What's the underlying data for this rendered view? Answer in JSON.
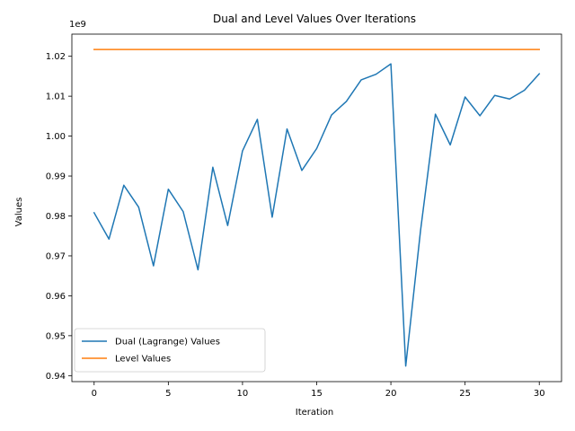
{
  "chart_data": {
    "type": "line",
    "title": "Dual and Level Values Over Iterations",
    "xlabel": "Iteration",
    "ylabel": "Values",
    "offset_text": "1e9",
    "xlim": [
      -1.5,
      31.5
    ],
    "ylim": [
      0.9385,
      1.02555
    ],
    "x_ticks": [
      0,
      5,
      10,
      15,
      20,
      25,
      30
    ],
    "x_tick_labels": [
      "0",
      "5",
      "10",
      "15",
      "20",
      "25",
      "30"
    ],
    "y_ticks": [
      0.94,
      0.95,
      0.96,
      0.97,
      0.98,
      0.99,
      1.0,
      1.01,
      1.02
    ],
    "y_tick_labels": [
      "0.94",
      "0.95",
      "0.96",
      "0.97",
      "0.98",
      "0.99",
      "1.00",
      "1.01",
      "1.02"
    ],
    "grid": false,
    "legend_position": "lower-left",
    "x": [
      0,
      1,
      2,
      3,
      4,
      5,
      6,
      7,
      8,
      9,
      10,
      11,
      12,
      13,
      14,
      15,
      16,
      17,
      18,
      19,
      20,
      21,
      22,
      23,
      24,
      25,
      26,
      27,
      28,
      29,
      30
    ],
    "series": [
      {
        "name": "Dual (Lagrange) Values",
        "color": "#1f77b4",
        "values": [
          0.9808,
          0.9742,
          0.9877,
          0.9822,
          0.9675,
          0.9867,
          0.9811,
          0.9665,
          0.9922,
          0.9776,
          0.9963,
          1.0042,
          0.9797,
          1.0018,
          0.9914,
          0.9969,
          1.0053,
          1.0087,
          1.0141,
          1.0155,
          1.0181,
          0.9424,
          0.9764,
          1.0055,
          0.9978,
          1.0098,
          1.0051,
          1.0102,
          1.0093,
          1.0115,
          1.0156
        ]
      },
      {
        "name": "Level Values",
        "color": "#ff7f0e",
        "values": [
          1.0217,
          1.0217,
          1.0217,
          1.0217,
          1.0217,
          1.0217,
          1.0217,
          1.0217,
          1.0217,
          1.0217,
          1.0217,
          1.0217,
          1.0217,
          1.0217,
          1.0217,
          1.0217,
          1.0217,
          1.0217,
          1.0217,
          1.0217,
          1.0217,
          1.0217,
          1.0217,
          1.0217,
          1.0217,
          1.0217,
          1.0217,
          1.0217,
          1.0217,
          1.0217,
          1.0217
        ]
      }
    ]
  }
}
